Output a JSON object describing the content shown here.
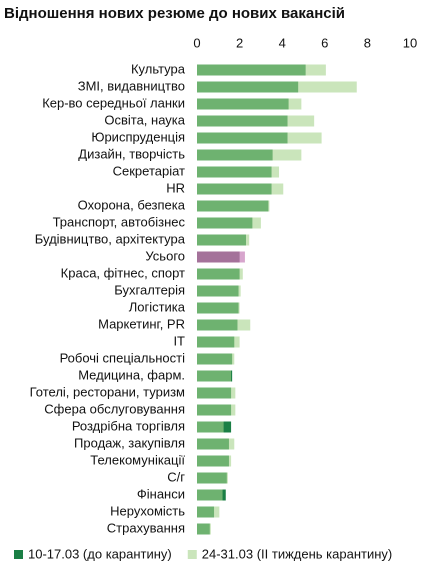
{
  "chart_data": {
    "type": "bar",
    "orientation": "horizontal",
    "title": "Відношення нових резюме до нових вакансій",
    "categories": [
      "Культура",
      "ЗМІ, видавництво",
      "Кер-во середньої ланки",
      "Освіта, наука",
      "Юриспруденція",
      "Дизайн, творчість",
      "Секретаріат",
      "HR",
      "Охорона, безпека",
      "Транспорт, автобізнес",
      "Будівництво, архітектура",
      "Усього",
      "Краса, фітнес, спорт",
      "Бухгалтерія",
      "Логістика",
      "Маркетинг, PR",
      "IT",
      "Робочі спеціальності",
      "Медицина, фарм.",
      "Готелі, ресторани, туризм",
      "Сфера обслуговування",
      "Роздрібна торгівля",
      "Продаж, закупівля",
      "Телекомунікації",
      "С/г",
      "Фінанси",
      "Нерухомість",
      "Страхування"
    ],
    "series": [
      {
        "name": "10-17.03 (до карантину)",
        "color": "#1a7f45",
        "highlight_color": "#555555",
        "values": [
          5.1,
          4.75,
          4.3,
          4.25,
          4.25,
          3.55,
          3.5,
          3.5,
          3.35,
          2.6,
          2.3,
          2.0,
          2.0,
          1.95,
          1.95,
          1.9,
          1.75,
          1.65,
          1.65,
          1.6,
          1.6,
          1.6,
          1.5,
          1.5,
          1.4,
          1.35,
          0.8,
          0.6
        ]
      },
      {
        "name": "24-31.03 (II тиждень карантину)",
        "color": "#a6d48e",
        "highlight_color": "#c67fb8",
        "values": [
          6.05,
          7.5,
          4.9,
          5.5,
          5.85,
          4.9,
          3.85,
          4.05,
          3.4,
          3.0,
          2.45,
          2.25,
          2.15,
          2.05,
          2.0,
          2.5,
          2.0,
          1.75,
          1.6,
          1.8,
          1.8,
          1.25,
          1.75,
          1.6,
          1.45,
          1.2,
          1.05,
          0.65
        ]
      }
    ],
    "highlight_index": 11,
    "xlim": [
      0,
      10
    ],
    "xticks": [
      0,
      2,
      4,
      6,
      8,
      10
    ],
    "grid": false,
    "legend": "bottom"
  }
}
